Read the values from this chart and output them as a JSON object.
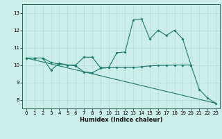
{
  "xlabel": "Humidex (Indice chaleur)",
  "bg_color": "#cceee8",
  "grid_color": "#b8ddd6",
  "line_color": "#1a7a6a",
  "spine_color": "#336655",
  "xlim": [
    -0.5,
    23.5
  ],
  "ylim": [
    7.5,
    13.5
  ],
  "xticks": [
    0,
    1,
    2,
    3,
    4,
    5,
    6,
    7,
    8,
    9,
    10,
    11,
    12,
    13,
    14,
    15,
    16,
    17,
    18,
    19,
    20,
    21,
    22,
    23
  ],
  "yticks": [
    8,
    9,
    10,
    11,
    12,
    13
  ],
  "line1_x": [
    0,
    1,
    2,
    3,
    4,
    5,
    6,
    7,
    8,
    9,
    10,
    11,
    12,
    13,
    14,
    15,
    16,
    17,
    18,
    19,
    20,
    21,
    22,
    23
  ],
  "line1_y": [
    10.4,
    10.4,
    10.4,
    9.7,
    10.1,
    10.0,
    9.95,
    9.6,
    9.55,
    9.8,
    9.85,
    10.7,
    10.75,
    12.6,
    12.65,
    11.5,
    12.0,
    11.7,
    12.0,
    11.5,
    10.0,
    8.6,
    8.1,
    7.8
  ],
  "line2_x": [
    0,
    1,
    2,
    3,
    4,
    5,
    6,
    7,
    8,
    9,
    10,
    11,
    12,
    13,
    14,
    15,
    16,
    17,
    18,
    19,
    20
  ],
  "line2_y": [
    10.4,
    10.4,
    10.4,
    10.15,
    10.05,
    10.0,
    10.0,
    10.45,
    10.45,
    9.85,
    9.85,
    9.85,
    9.85,
    9.85,
    9.9,
    9.95,
    9.97,
    9.98,
    10.0,
    10.0,
    10.0
  ],
  "line3_x": [
    0,
    23
  ],
  "line3_y": [
    10.4,
    7.8
  ],
  "tick_fontsize": 5,
  "xlabel_fontsize": 6,
  "marker_size": 2.0,
  "line_width": 0.8
}
